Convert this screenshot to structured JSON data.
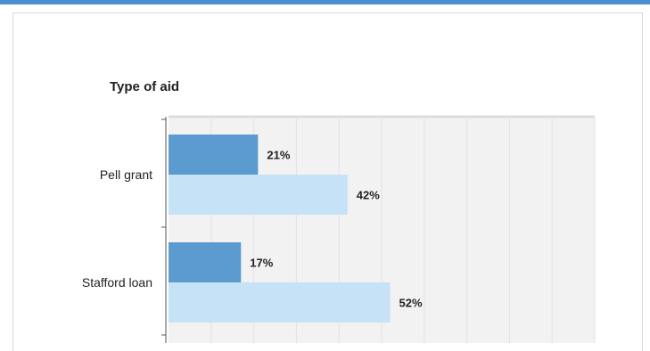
{
  "colors": {
    "accent_bar": "#4a8fd0",
    "series_dark": "#5b9bd0",
    "series_light": "#c6e2f7",
    "plot_bg": "#f2f2f2",
    "grid": "#e0e0ee"
  },
  "chart_data": {
    "type": "bar",
    "orientation": "horizontal",
    "title": "",
    "ylabel": "Type of aid",
    "xlabel": "",
    "categories": [
      "Pell grant",
      "Stafford loan"
    ],
    "series": [
      {
        "values": [
          21,
          17
        ],
        "labels": [
          "21%",
          "17%"
        ]
      },
      {
        "values": [
          42,
          52
        ],
        "labels": [
          "42%",
          "52%"
        ]
      }
    ],
    "xlim": [
      0,
      100
    ],
    "grid": true,
    "legend": "none"
  }
}
